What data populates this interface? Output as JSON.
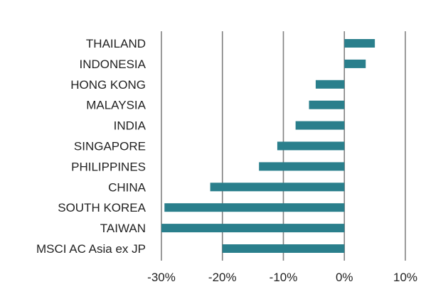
{
  "chart_data": {
    "type": "bar",
    "orientation": "horizontal",
    "categories": [
      "THAILAND",
      "INDONESIA",
      "HONG KONG",
      "MALAYSIA",
      "INDIA",
      "SINGAPORE",
      "PHILIPPINES",
      "CHINA",
      "SOUTH KOREA",
      "TAIWAN",
      "MSCI AC Asia ex JP"
    ],
    "values": [
      5,
      3.5,
      -4.7,
      -5.8,
      -8,
      -11,
      -14,
      -22,
      -29.5,
      -30,
      -20
    ],
    "xlim": [
      -30,
      10
    ],
    "xticks": [
      -30,
      -20,
      -10,
      0,
      10
    ],
    "xtick_labels": [
      "-30%",
      "-20%",
      "-10%",
      "0%",
      "10%"
    ],
    "title": "",
    "xlabel": "",
    "ylabel": "",
    "grid": "vertical",
    "legend": "none",
    "colors": {
      "bar": "#2a7f8c",
      "grid": "#808080"
    }
  }
}
